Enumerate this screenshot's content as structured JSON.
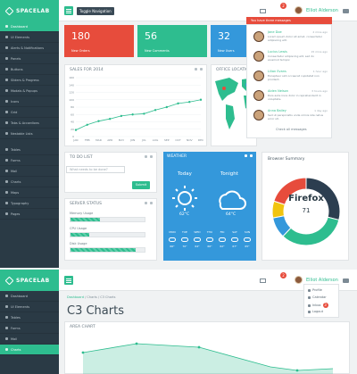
{
  "app": {
    "logo": "SPACELAB",
    "toggle_label": "Toggle Navigation",
    "user_name": "Elliot Alderson",
    "mail_count": "2",
    "avatar_label": "EA"
  },
  "sidebar": {
    "group1": [
      {
        "label": "Dashboard",
        "active": true
      },
      {
        "label": "UI Elements"
      },
      {
        "label": "Alerts & Notifications"
      },
      {
        "label": "Panels"
      },
      {
        "label": "Buttons"
      },
      {
        "label": "Sliders & Progress"
      },
      {
        "label": "Modals & Popups"
      },
      {
        "label": "Icons"
      },
      {
        "label": "Grid"
      },
      {
        "label": "Tabs & Accordions"
      },
      {
        "label": "Nestable Lists"
      }
    ],
    "group2": [
      {
        "label": "Tables"
      },
      {
        "label": "Forms"
      },
      {
        "label": "Mail"
      },
      {
        "label": "Charts"
      },
      {
        "label": "Maps"
      },
      {
        "label": "Typography"
      },
      {
        "label": "Pages"
      }
    ]
  },
  "tiles": [
    {
      "value": "180",
      "label": "New Orders",
      "color": "#e74c3c"
    },
    {
      "value": "56",
      "label": "New Comments",
      "color": "#2ebd8f"
    },
    {
      "value": "32",
      "label": "New Users",
      "color": "#3498db"
    }
  ],
  "sales": {
    "title": "SALES FOR 2014"
  },
  "chart_data": {
    "type": "line",
    "title": "SALES FOR 2014",
    "categories": [
      "JAN",
      "FEB",
      "MAR",
      "APR",
      "MAY",
      "JUN",
      "JUL",
      "AUG",
      "SEP",
      "OCT",
      "NOV",
      "DEC"
    ],
    "series": [
      {
        "values": [
          18,
          32,
          42,
          48,
          56,
          60,
          62,
          72,
          80,
          90,
          94,
          100
        ]
      }
    ],
    "yticks": [
      "0",
      "20",
      "40",
      "60",
      "80",
      "100",
      "120",
      "140",
      "160"
    ],
    "ylim": [
      0,
      160
    ],
    "color": "#2ebd8f"
  },
  "office": {
    "title": "OFFICE LOCATIONS"
  },
  "messages": {
    "header": "You have three messages",
    "items": [
      {
        "name": "Jane Doe",
        "text": "Lorem ipsum dolor sit amet, consectetur adipiscing elit.",
        "time": "2 mins ago"
      },
      {
        "name": "Lucius Lewis",
        "text": "Consectetur adipiscing elit, sed do eiusmod tempor.",
        "time": "15 mins ago"
      },
      {
        "name": "Lilian Evans",
        "text": "Excepteur sint occaecat cupidatat non proident.",
        "time": "1 hour ago"
      },
      {
        "name": "Aiden Nelson",
        "text": "Duis aute irure dolor in reprehenderit in voluptate.",
        "time": "3 hours ago"
      },
      {
        "name": "Anna Bailey",
        "text": "Sed ut perspiciatis unde omnis iste natus error sit.",
        "time": "1 day ago"
      }
    ],
    "footer": "Check all messages"
  },
  "todo": {
    "title": "TO DO LIST",
    "placeholder": "What needs to be done?",
    "button": "Submit"
  },
  "server": {
    "title": "SERVER STATUS",
    "items": [
      {
        "label": "Memory Usage",
        "value": 0.4
      },
      {
        "label": "CPU Usage",
        "value": 0.25
      },
      {
        "label": "Disk Usage",
        "value": 0.88
      }
    ]
  },
  "weather": {
    "title": "WEATHER",
    "today_label": "Today",
    "tonight_label": "Tonight",
    "today_temp": "62°C",
    "tonight_temp": "64°C",
    "forecast": [
      {
        "day": "MON",
        "temp": "66°"
      },
      {
        "day": "TUE",
        "temp": "70°"
      },
      {
        "day": "WED",
        "temp": "64°"
      },
      {
        "day": "THU",
        "temp": "66°"
      },
      {
        "day": "FRI",
        "temp": "62°"
      },
      {
        "day": "SAT",
        "temp": "67°"
      },
      {
        "day": "SUN",
        "temp": "65°"
      }
    ]
  },
  "browser": {
    "title": "Browser Summary",
    "name": "Firefox",
    "value": "71",
    "segments": [
      {
        "value": 0.29,
        "color": "#2c3e50"
      },
      {
        "value": 0.33,
        "color": "#2ebd8f"
      },
      {
        "value": 0.1,
        "color": "#3498db"
      },
      {
        "value": 0.08,
        "color": "#f1c40f"
      },
      {
        "value": 0.2,
        "color": "#e74c3c"
      }
    ]
  },
  "page2": {
    "sidebar": [
      {
        "label": "Dashboard"
      },
      {
        "label": "UI Elements"
      },
      {
        "label": "Tables"
      },
      {
        "label": "Forms"
      },
      {
        "label": "Mail"
      },
      {
        "label": "Charts",
        "active": true
      }
    ],
    "breadcrumb": [
      "Dashboard",
      "Charts",
      "C3 Charts"
    ],
    "title": "C3 Charts",
    "area_title": "AREA CHART",
    "menu": [
      {
        "label": "Profile"
      },
      {
        "label": "Calendar"
      },
      {
        "label": "Inbox",
        "badge": "3"
      },
      {
        "label": "Logout"
      }
    ]
  }
}
